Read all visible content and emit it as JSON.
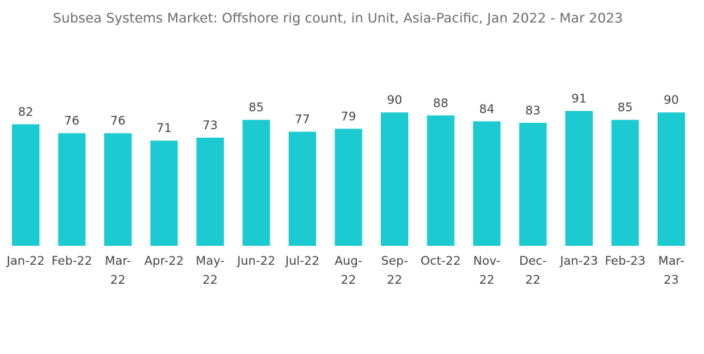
{
  "chart_data": {
    "type": "bar",
    "title": "Subsea Systems Market: Offshore rig count, in Unit, Asia-Pacific, Jan 2022 - Mar 2023",
    "categories": [
      "Jan-22",
      "Feb-22",
      "Mar-22",
      "Apr-22",
      "May-22",
      "Jun-22",
      "Jul-22",
      "Aug-22",
      "Sep-22",
      "Oct-22",
      "Nov-22",
      "Dec-22",
      "Jan-23",
      "Feb-23",
      "Mar-23"
    ],
    "values": [
      82,
      76,
      76,
      71,
      73,
      85,
      77,
      79,
      90,
      88,
      84,
      83,
      91,
      85,
      90
    ],
    "color": "#1ccbd1"
  }
}
